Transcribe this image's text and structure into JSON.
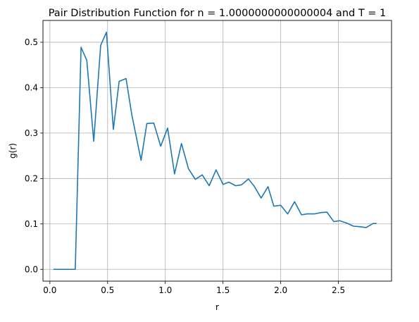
{
  "chart_data": {
    "type": "line",
    "title": "Pair Distribution Function for n = 1.0000000000000004 and T = 1",
    "xlabel": "r",
    "ylabel": "g(r)",
    "xlim": [
      -0.06,
      2.96
    ],
    "ylim": [
      -0.026,
      0.548
    ],
    "xticks": [
      0.0,
      0.5,
      1.0,
      1.5,
      2.0,
      2.5
    ],
    "xtick_labels": [
      "0.0",
      "0.5",
      "1.0",
      "1.5",
      "2.0",
      "2.5"
    ],
    "yticks": [
      0.0,
      0.1,
      0.2,
      0.3,
      0.4,
      0.5
    ],
    "ytick_labels": [
      "0.0",
      "0.1",
      "0.2",
      "0.3",
      "0.4",
      "0.5"
    ],
    "grid": true,
    "series": [
      {
        "color": "#1f77b4",
        "x": [
          0.03,
          0.08,
          0.14,
          0.19,
          0.22,
          0.27,
          0.32,
          0.38,
          0.44,
          0.49,
          0.55,
          0.6,
          0.66,
          0.71,
          0.79,
          0.84,
          0.9,
          0.96,
          1.02,
          1.08,
          1.14,
          1.2,
          1.26,
          1.32,
          1.38,
          1.44,
          1.5,
          1.55,
          1.61,
          1.66,
          1.72,
          1.77,
          1.83,
          1.89,
          1.94,
          2.0,
          2.06,
          2.12,
          2.18,
          2.23,
          2.29,
          2.35,
          2.4,
          2.46,
          2.51,
          2.57,
          2.63,
          2.68,
          2.74,
          2.8,
          2.83
        ],
        "y": [
          0.0,
          0.0,
          0.0,
          0.0,
          0.0,
          0.489,
          0.46,
          0.282,
          0.493,
          0.522,
          0.308,
          0.414,
          0.42,
          0.34,
          0.24,
          0.321,
          0.322,
          0.271,
          0.311,
          0.21,
          0.277,
          0.222,
          0.198,
          0.208,
          0.184,
          0.219,
          0.187,
          0.192,
          0.184,
          0.186,
          0.199,
          0.183,
          0.157,
          0.182,
          0.139,
          0.141,
          0.122,
          0.149,
          0.12,
          0.122,
          0.122,
          0.125,
          0.126,
          0.105,
          0.107,
          0.102,
          0.095,
          0.094,
          0.092,
          0.101,
          0.101
        ]
      }
    ]
  }
}
